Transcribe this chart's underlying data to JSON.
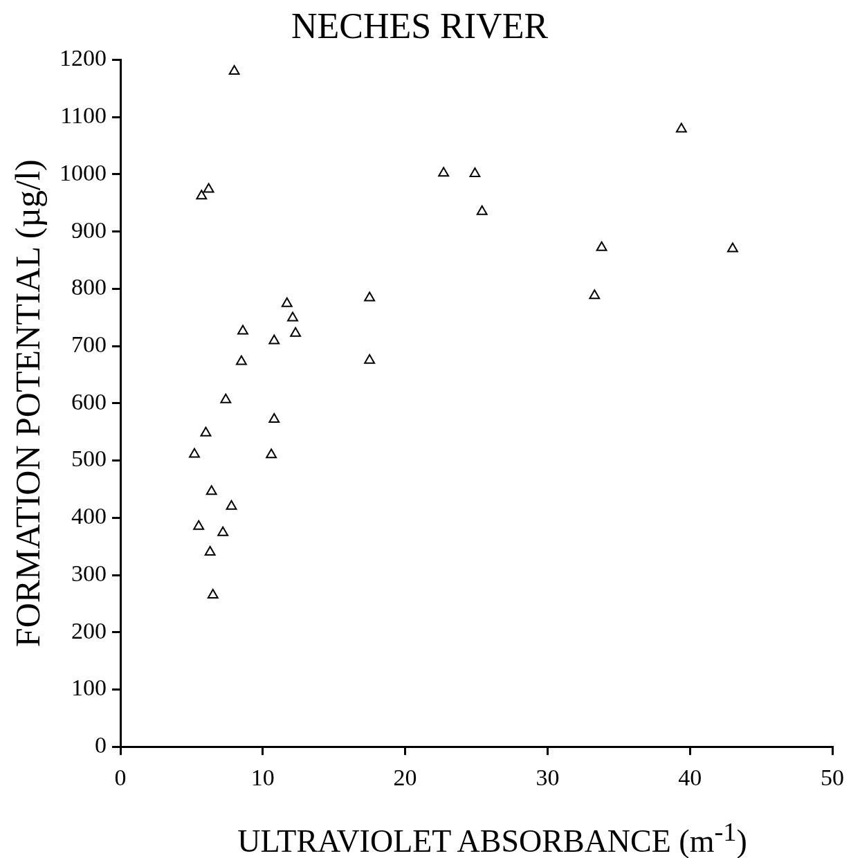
{
  "chart_data": {
    "type": "scatter",
    "title": "NECHES RIVER",
    "xlabel": "ULTRAVIOLET ABSORBANCE (m$^{-1}$)",
    "ylabel": "FORMATION POTENTIAL (µg/l)",
    "x": [
      8.0,
      6.2,
      5.7,
      22.7,
      24.9,
      25.4,
      39.4,
      33.8,
      43.0,
      33.3,
      17.5,
      17.5,
      11.7,
      12.1,
      12.3,
      8.6,
      10.8,
      8.5,
      7.4,
      10.8,
      6.0,
      5.2,
      10.6,
      6.4,
      7.8,
      5.5,
      7.2,
      6.3,
      6.5
    ],
    "values": [
      1180,
      974,
      962,
      1002,
      1001,
      935,
      1079,
      872,
      870,
      788,
      784,
      675,
      774,
      749,
      722,
      726,
      709,
      673,
      606,
      572,
      548,
      511,
      510,
      446,
      420,
      385,
      374,
      340,
      265
    ],
    "color": "#000000",
    "marker": "triangle",
    "grid": false,
    "legend": false,
    "xlim": [
      0,
      50
    ],
    "xticks": [
      0,
      10,
      20,
      30,
      40,
      50
    ],
    "ylim": [
      0,
      1200
    ],
    "yticks": [
      0,
      100,
      200,
      300,
      400,
      500,
      600,
      700,
      800,
      900,
      1000,
      1100,
      1200
    ]
  }
}
